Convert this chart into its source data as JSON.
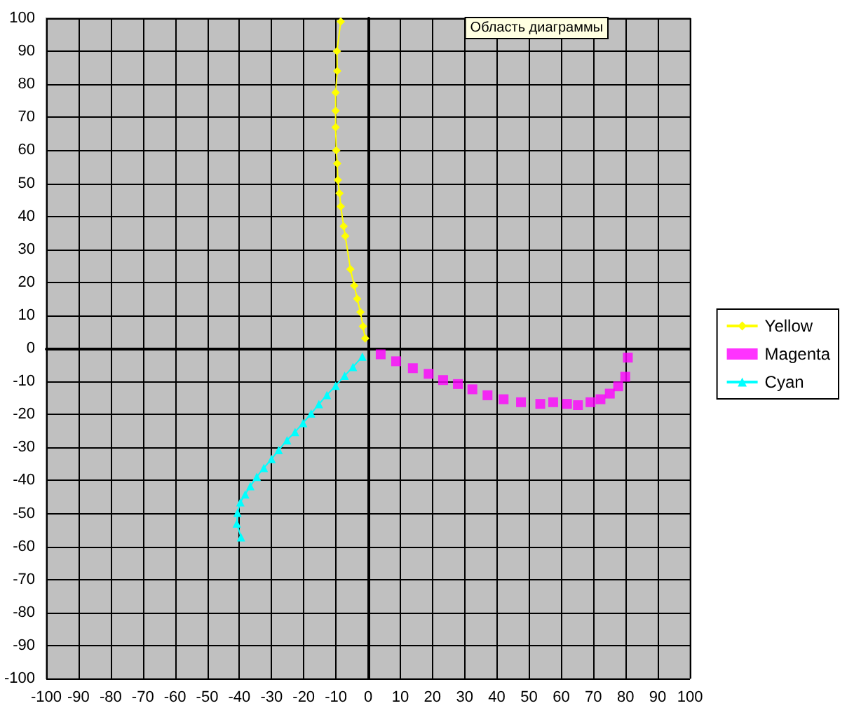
{
  "chart_data": {
    "type": "line",
    "annotations": [
      "Область диаграммы"
    ],
    "xlim": [
      -100,
      100
    ],
    "ylim": [
      -100,
      100
    ],
    "xticks": [
      -100,
      -90,
      -80,
      -70,
      -60,
      -50,
      -40,
      -30,
      -20,
      -10,
      0,
      10,
      20,
      30,
      40,
      50,
      60,
      70,
      80,
      90,
      100
    ],
    "yticks": [
      -100,
      -90,
      -80,
      -70,
      -60,
      -50,
      -40,
      -30,
      -20,
      -10,
      0,
      10,
      20,
      30,
      40,
      50,
      60,
      70,
      80,
      90,
      100
    ],
    "grid": true,
    "legend": "right",
    "series": [
      {
        "name": "Yellow",
        "color": "#ffff00",
        "marker": "diamond",
        "x": [
          -0.9,
          -1.6,
          -2.4,
          -3.4,
          -4.3,
          -5.5,
          -7.1,
          -7.6,
          -8.5,
          -8.9,
          -9.4,
          -9.6,
          -9.9,
          -10.1,
          -10.1,
          -10.1,
          -9.6,
          -9.7,
          -8.5
        ],
        "values": [
          3,
          6.7,
          11,
          15,
          19,
          24,
          34,
          37,
          43,
          47,
          51,
          56,
          60,
          67,
          72,
          77.5,
          84,
          90,
          99
        ]
      },
      {
        "name": "Magenta",
        "type": "scatter",
        "color": "#ff00ff",
        "marker": "square",
        "x": [
          3.9,
          8.7,
          13.9,
          18.8,
          23.3,
          27.9,
          32.4,
          37.1,
          42.1,
          47.5,
          53.5,
          57.5,
          61.8,
          65.2,
          69.1,
          72.2,
          75.1,
          77.7,
          79.9,
          80.7
        ],
        "values": [
          -1.8,
          -3.9,
          -6,
          -7.7,
          -9.6,
          -10.8,
          -12.4,
          -14.2,
          -15.4,
          -16.3,
          -16.8,
          -16.3,
          -16.8,
          -17.2,
          -16.3,
          -15.4,
          -13.7,
          -11.5,
          -8.6,
          -2.8
        ]
      },
      {
        "name": "Cyan",
        "color": "#00ffff",
        "marker": "triangle",
        "x": [
          -1.8,
          -4.7,
          -7.3,
          -10.1,
          -12.8,
          -15.3,
          -17.7,
          -20.2,
          -22.7,
          -25.2,
          -27.8,
          -30,
          -32.4,
          -34.6,
          -36.6,
          -38.2,
          -39.7,
          -40.6,
          -40.8,
          -39.5
        ],
        "values": [
          -2.5,
          -5.6,
          -8.3,
          -11.3,
          -14.1,
          -16.9,
          -19.7,
          -22.6,
          -25.3,
          -27.8,
          -30.8,
          -33.5,
          -36.2,
          -38.9,
          -41.7,
          -44.2,
          -46.6,
          -49.8,
          -53,
          -57.2
        ]
      }
    ]
  }
}
